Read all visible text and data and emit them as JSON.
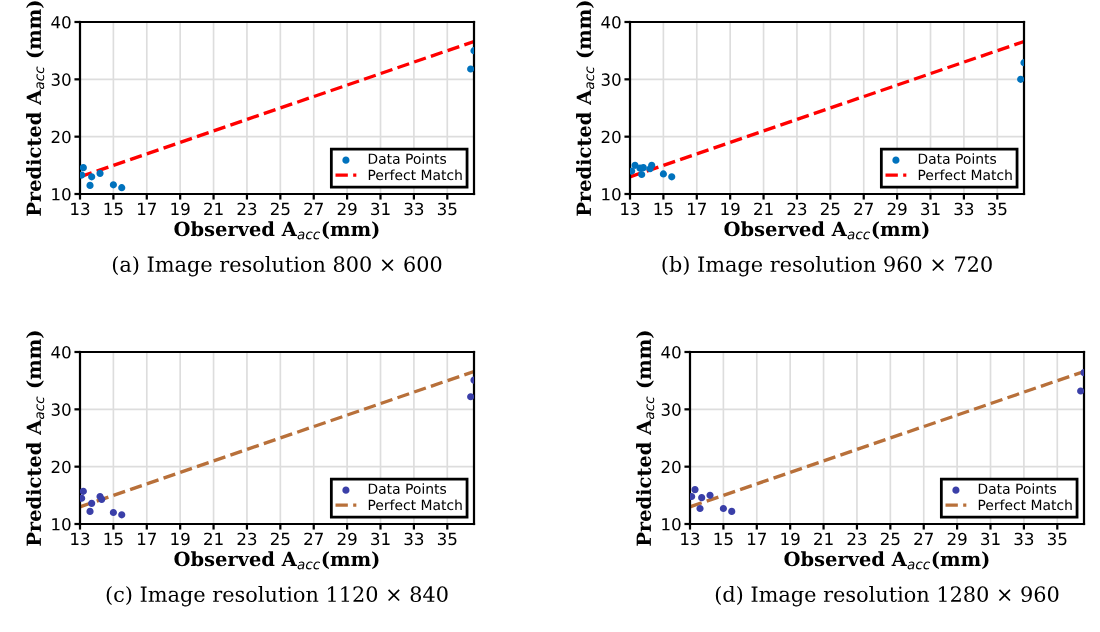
{
  "chart_data": [
    {
      "type": "scatter",
      "title": "(a) Image resolution 800 × 600",
      "xlabel": "Observed A$_{acc}$(mm)",
      "ylabel": "Predicted A$_{acc}$ (mm)",
      "xlim": [
        13,
        36.6
      ],
      "xticks": [
        13,
        15,
        17,
        19,
        21,
        23,
        25,
        27,
        29,
        31,
        33,
        35
      ],
      "ylim": [
        10,
        40
      ],
      "yticks": [
        10,
        20,
        30,
        40
      ],
      "grid": true,
      "legend": "bottom right",
      "series": [
        {
          "name": "Data Points",
          "marker": "circle",
          "color": "#0072bd",
          "x": [
            13.1,
            13.2,
            13.6,
            13.7,
            14.2,
            15.0,
            15.5,
            36.4,
            36.6
          ],
          "values": [
            13.3,
            14.6,
            11.5,
            13.0,
            13.6,
            11.6,
            11.1,
            31.8,
            35.0
          ]
        },
        {
          "name": "Perfect Match",
          "type": "line",
          "line_style": "dashed",
          "color": "#ff0000",
          "x": [
            13,
            36.6
          ],
          "values": [
            13,
            36.6
          ]
        }
      ]
    },
    {
      "type": "scatter",
      "title": "(b) Image resolution 960 × 720",
      "xlabel": "Observed A$_{acc}$(mm)",
      "ylabel": "Predicted A$_{acc}$ (mm)",
      "xlim": [
        13,
        36.6
      ],
      "xticks": [
        13,
        15,
        17,
        19,
        21,
        23,
        25,
        27,
        29,
        31,
        33,
        35
      ],
      "ylim": [
        10,
        40
      ],
      "yticks": [
        10,
        20,
        30,
        40
      ],
      "grid": true,
      "legend": "bottom right",
      "series": [
        {
          "name": "Data Points",
          "marker": "circle",
          "color": "#0072bd",
          "x": [
            13.1,
            13.3,
            13.6,
            13.7,
            13.8,
            14.2,
            14.3,
            15.0,
            15.5,
            36.4,
            36.6
          ],
          "values": [
            14.0,
            15.0,
            14.5,
            13.4,
            14.6,
            14.4,
            15.0,
            13.5,
            13.0,
            30.0,
            32.9
          ]
        },
        {
          "name": "Perfect Match",
          "type": "line",
          "line_style": "dashed",
          "color": "#ff0000",
          "x": [
            13,
            36.6
          ],
          "values": [
            13,
            36.6
          ]
        }
      ]
    },
    {
      "type": "scatter",
      "title": "(c) Image resolution 1120 × 840",
      "xlabel": "Observed A$_{acc}$(mm)",
      "ylabel": "Predicted A$_{acc}$ (mm)",
      "xlim": [
        13,
        36.6
      ],
      "xticks": [
        13,
        15,
        17,
        19,
        21,
        23,
        25,
        27,
        29,
        31,
        33,
        35
      ],
      "ylim": [
        10,
        40
      ],
      "yticks": [
        10,
        20,
        30,
        40
      ],
      "grid": true,
      "legend": "bottom right",
      "series": [
        {
          "name": "Data Points",
          "marker": "circle",
          "color": "#3a3fa8",
          "x": [
            13.1,
            13.2,
            13.6,
            13.7,
            14.2,
            14.3,
            15.0,
            15.5,
            36.4,
            36.6
          ],
          "values": [
            14.5,
            15.7,
            12.2,
            13.6,
            14.8,
            14.3,
            12.0,
            11.6,
            32.2,
            35.1
          ]
        },
        {
          "name": "Perfect Match",
          "type": "line",
          "line_style": "dashed",
          "color": "#b8703a",
          "x": [
            13,
            36.6
          ],
          "values": [
            13,
            36.6
          ]
        }
      ]
    },
    {
      "type": "scatter",
      "title": "(d) Image resolution 1280 × 960",
      "xlabel": "Observed A$_{acc}$(mm)",
      "ylabel": "Predicted A$_{acc}$ (mm)",
      "xlim": [
        13,
        36.6
      ],
      "xticks": [
        13,
        15,
        17,
        19,
        21,
        23,
        25,
        27,
        29,
        31,
        33,
        35
      ],
      "ylim": [
        10,
        40
      ],
      "yticks": [
        10,
        20,
        30,
        40
      ],
      "grid": true,
      "legend": "bottom right",
      "series": [
        {
          "name": "Data Points",
          "marker": "circle",
          "color": "#3a3fa8",
          "x": [
            13.1,
            13.3,
            13.6,
            13.7,
            14.2,
            15.0,
            15.5,
            36.4,
            36.6
          ],
          "values": [
            14.8,
            16.0,
            12.7,
            14.6,
            15.0,
            12.7,
            12.2,
            33.2,
            36.4
          ]
        },
        {
          "name": "Perfect Match",
          "type": "line",
          "line_style": "dashed",
          "color": "#b8703a",
          "x": [
            13,
            36.6
          ],
          "values": [
            13,
            36.6
          ]
        }
      ]
    }
  ]
}
